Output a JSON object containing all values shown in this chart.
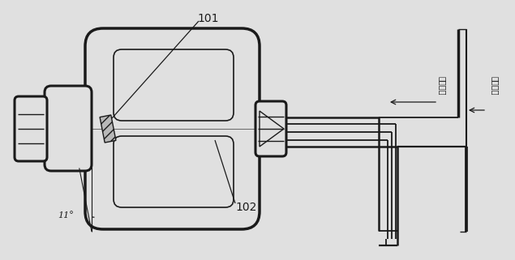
{
  "bg_color": "#e0e0e0",
  "line_color": "#1a1a1a",
  "label_101": "101",
  "label_102": "102",
  "angle_label": "11°",
  "chinese_left": "激励线圈",
  "chinese_right": "高压线圈",
  "lw_thick": 2.2,
  "lw_thin": 1.0,
  "lw_cable": 1.3,
  "figw": 6.35,
  "figh": 3.21,
  "dpi": 100
}
